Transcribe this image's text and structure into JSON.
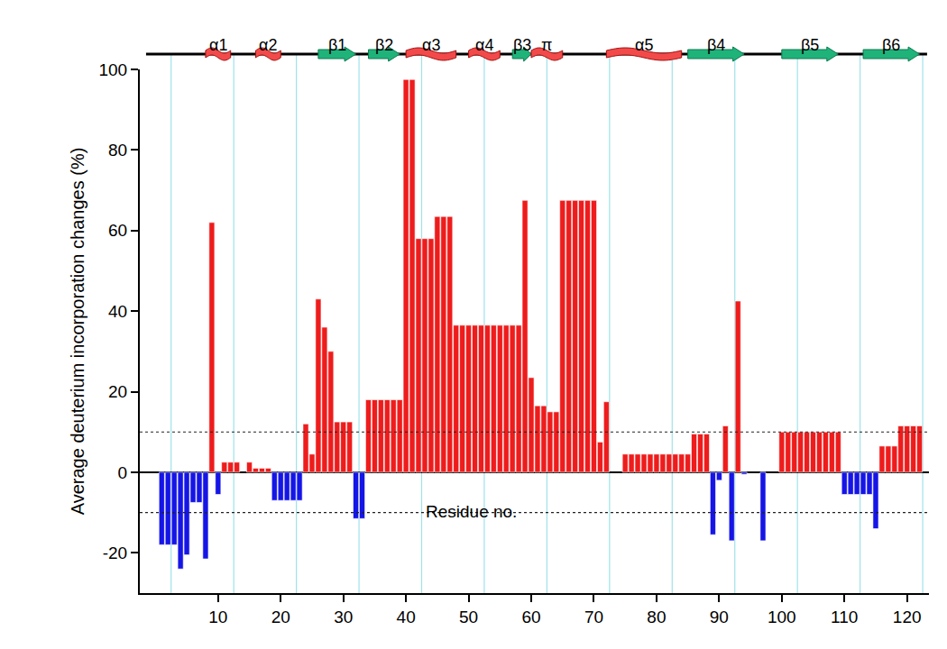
{
  "chart_data": {
    "type": "bar",
    "y_label": "Average deuterium incorporation changes (%)",
    "x_label": "Residue no.",
    "x": [
      1,
      2,
      3,
      4,
      5,
      6,
      7,
      8,
      9,
      10,
      11,
      12,
      13,
      14,
      15,
      16,
      17,
      18,
      19,
      20,
      21,
      22,
      23,
      24,
      25,
      26,
      27,
      28,
      29,
      30,
      31,
      32,
      33,
      34,
      35,
      36,
      37,
      38,
      39,
      40,
      41,
      42,
      43,
      44,
      45,
      46,
      47,
      48,
      49,
      50,
      51,
      52,
      53,
      54,
      55,
      56,
      57,
      58,
      59,
      60,
      61,
      62,
      63,
      64,
      65,
      66,
      67,
      68,
      69,
      70,
      71,
      72,
      73,
      74,
      75,
      76,
      77,
      78,
      79,
      80,
      81,
      82,
      83,
      84,
      85,
      86,
      87,
      88,
      89,
      90,
      91,
      92,
      93,
      94,
      95,
      96,
      97,
      98,
      99,
      100,
      101,
      102,
      103,
      104,
      105,
      106,
      107,
      108,
      109,
      110,
      111,
      112,
      113,
      114,
      115,
      116,
      117,
      118,
      119,
      120,
      121,
      122
    ],
    "values": [
      -18,
      -18,
      -18,
      -24,
      -20.5,
      -7.5,
      -7.5,
      -21.5,
      62,
      -5.5,
      2.5,
      2.5,
      2.5,
      null,
      2.5,
      1,
      1,
      1,
      -7,
      -7,
      -7,
      -7,
      -7,
      12,
      4.5,
      43,
      36,
      30,
      12.5,
      12.5,
      12.5,
      -11.5,
      -11.5,
      18,
      18,
      18,
      18,
      18,
      18,
      97.5,
      97.5,
      58,
      58,
      58,
      63.5,
      63.5,
      63.5,
      36.5,
      36.5,
      36.5,
      36.5,
      36.5,
      36.5,
      36.5,
      36.5,
      36.5,
      36.5,
      36.5,
      67.5,
      23.5,
      16.5,
      16.5,
      15,
      15,
      67.5,
      67.5,
      67.5,
      67.5,
      67.5,
      67.5,
      7.5,
      17.5,
      null,
      null,
      4.5,
      4.5,
      4.5,
      4.5,
      4.5,
      4.5,
      4.5,
      4.5,
      4.5,
      4.5,
      4.5,
      9.5,
      9.5,
      9.5,
      -15.5,
      -2,
      11.5,
      -17,
      42.5,
      -0.5,
      null,
      null,
      -17,
      null,
      null,
      10,
      10,
      10,
      10,
      10,
      10,
      10,
      10,
      10,
      10,
      -5.5,
      -5.5,
      -5.5,
      -5.5,
      -5.5,
      -14,
      6.5,
      6.5,
      6.5,
      11.5,
      11.5,
      11.5,
      11.5
    ],
    "colors": [
      "#1515e6",
      "#1515e6",
      "#1515e6",
      "#1515e6",
      "#1515e6",
      "#1515e6",
      "#1515e6",
      "#1515e6",
      "#ee1c1c",
      "#1515e6",
      "#ee1c1c",
      "#ee1c1c",
      "#ee1c1c",
      null,
      "#ee1c1c",
      "#ee1c1c",
      "#ee1c1c",
      "#ee1c1c",
      "#1515e6",
      "#1515e6",
      "#1515e6",
      "#1515e6",
      "#1515e6",
      "#ee1c1c",
      "#ee1c1c",
      "#ee1c1c",
      "#ee1c1c",
      "#ee1c1c",
      "#ee1c1c",
      "#ee1c1c",
      "#ee1c1c",
      "#1515e6",
      "#1515e6",
      "#ee1c1c",
      "#ee1c1c",
      "#ee1c1c",
      "#ee1c1c",
      "#ee1c1c",
      "#ee1c1c",
      "#ee1c1c",
      "#ee1c1c",
      "#ee1c1c",
      "#ee1c1c",
      "#ee1c1c",
      "#ee1c1c",
      "#ee1c1c",
      "#ee1c1c",
      "#ee1c1c",
      "#ee1c1c",
      "#ee1c1c",
      "#ee1c1c",
      "#ee1c1c",
      "#ee1c1c",
      "#ee1c1c",
      "#ee1c1c",
      "#ee1c1c",
      "#ee1c1c",
      "#ee1c1c",
      "#ee1c1c",
      "#ee1c1c",
      "#ee1c1c",
      "#ee1c1c",
      "#ee1c1c",
      "#ee1c1c",
      "#ee1c1c",
      "#ee1c1c",
      "#ee1c1c",
      "#ee1c1c",
      "#ee1c1c",
      "#ee1c1c",
      "#ee1c1c",
      "#ee1c1c",
      null,
      null,
      "#ee1c1c",
      "#ee1c1c",
      "#ee1c1c",
      "#ee1c1c",
      "#ee1c1c",
      "#ee1c1c",
      "#ee1c1c",
      "#ee1c1c",
      "#ee1c1c",
      "#ee1c1c",
      "#ee1c1c",
      "#ee1c1c",
      "#ee1c1c",
      "#ee1c1c",
      "#1515e6",
      "#1515e6",
      "#ee1c1c",
      "#1515e6",
      "#ee1c1c",
      "#1515e6",
      null,
      null,
      "#1515e6",
      null,
      null,
      "#ee1c1c",
      "#ee1c1c",
      "#ee1c1c",
      "#ee1c1c",
      "#ee1c1c",
      "#ee1c1c",
      "#ee1c1c",
      "#ee1c1c",
      "#ee1c1c",
      "#ee1c1c",
      "#1515e6",
      "#1515e6",
      "#1515e6",
      "#1515e6",
      "#1515e6",
      "#1515e6",
      "#ee1c1c",
      "#ee1c1c",
      "#ee1c1c",
      "#ee1c1c",
      "#ee1c1c",
      "#ee1c1c",
      "#ee1c1c"
    ],
    "xlim": [
      -2.5,
      123.5
    ],
    "xticks": [
      10,
      20,
      30,
      40,
      50,
      60,
      70,
      80,
      90,
      100,
      110,
      120
    ],
    "ylim": [
      -30,
      100
    ],
    "yticks": [
      -20,
      0,
      20,
      40,
      60,
      80,
      100
    ],
    "reference_lines": {
      "y": [
        -10,
        10
      ],
      "x": [
        2.5,
        12.5,
        22.5,
        32.5,
        42.5,
        52.5,
        62.5,
        72.5,
        82.5,
        92.5,
        102.5,
        112.5,
        122.5
      ]
    },
    "secondary_structure": [
      {
        "label": "α1",
        "type": "helix",
        "start": 8,
        "end": 12
      },
      {
        "label": "α2",
        "type": "helix",
        "start": 16,
        "end": 20
      },
      {
        "label": "β1",
        "type": "strand",
        "start": 26,
        "end": 32
      },
      {
        "label": "β2",
        "type": "strand",
        "start": 34,
        "end": 39
      },
      {
        "label": "α3",
        "type": "helix",
        "start": 40,
        "end": 48
      },
      {
        "label": "α4",
        "type": "helix",
        "start": 50,
        "end": 55
      },
      {
        "label": "β3",
        "type": "strand",
        "start": 57,
        "end": 60
      },
      {
        "label": "π",
        "type": "helix",
        "start": 60,
        "end": 65
      },
      {
        "label": "α5",
        "type": "helix",
        "start": 72,
        "end": 84
      },
      {
        "label": "β4",
        "type": "strand",
        "start": 85,
        "end": 94
      },
      {
        "label": "β5",
        "type": "strand",
        "start": 100,
        "end": 109
      },
      {
        "label": "β6",
        "type": "strand",
        "start": 113,
        "end": 122
      }
    ]
  }
}
